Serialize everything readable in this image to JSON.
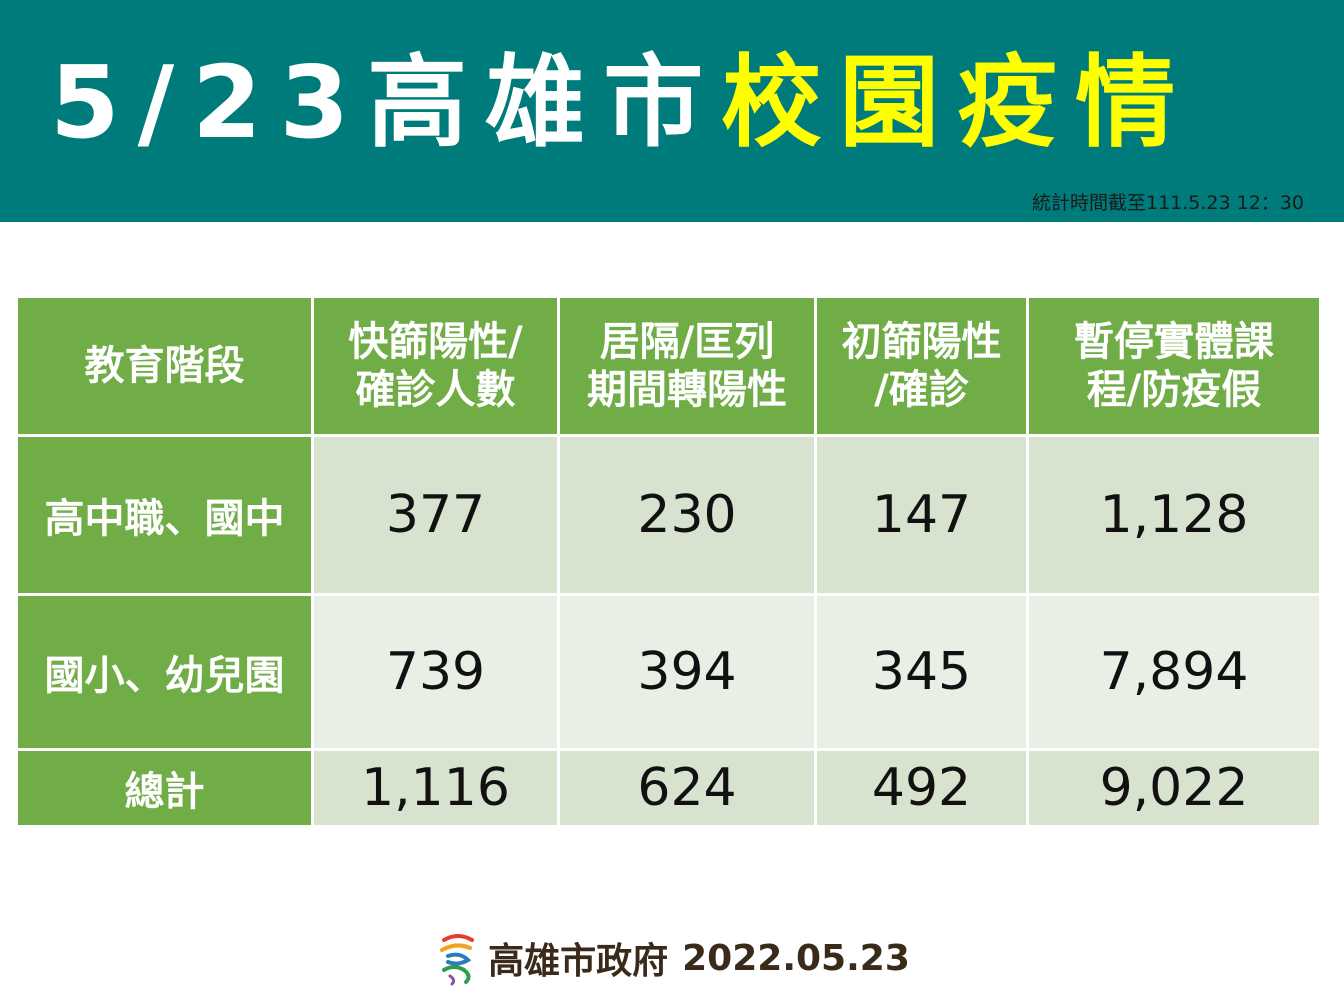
{
  "header": {
    "date": "5/23",
    "city": "高雄市",
    "highlight": "校園疫情",
    "stat_time": "統計時間截至111.5.23 12：30",
    "colors": {
      "banner": "#007b7b",
      "highlight": "#ffff00",
      "header_cell": "#70ad47"
    }
  },
  "table": {
    "columns": [
      "教育階段",
      "快篩陽性/確診人數",
      "居隔/匡列期間轉陽性",
      "初篩陽性/確診",
      "暫停實體課程/防疫假"
    ],
    "column_lines": [
      [
        "教育階段"
      ],
      [
        "快篩陽性/",
        "確診人數"
      ],
      [
        "居隔/匡列",
        "期間轉陽性"
      ],
      [
        "初篩陽性",
        "/確診"
      ],
      [
        "暫停實體課",
        "程/防疫假"
      ]
    ],
    "rows": [
      {
        "stage": "高中職、國中",
        "values": [
          "377",
          "230",
          "147",
          "1,128"
        ]
      },
      {
        "stage": "國小、幼兒園",
        "values": [
          "739",
          "394",
          "345",
          "7,894"
        ]
      },
      {
        "stage": "總計",
        "values": [
          "1,116",
          "624",
          "492",
          "9,022"
        ]
      }
    ]
  },
  "footer": {
    "logo_icon": "kaohsiung-logo-icon",
    "org": "高雄市政府",
    "date": "2022.05.23"
  }
}
